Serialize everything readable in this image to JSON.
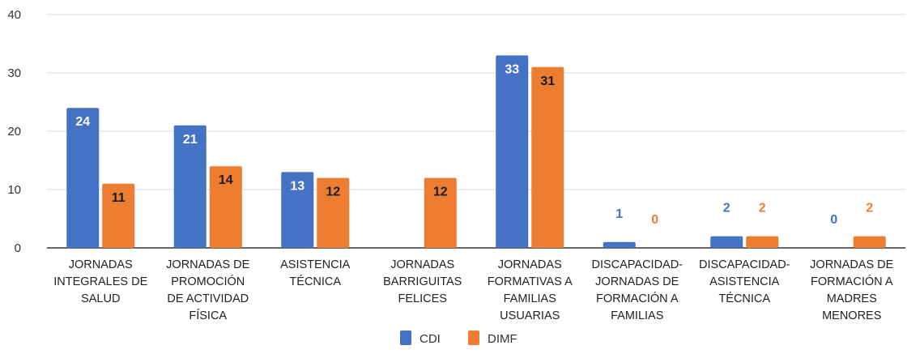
{
  "chart_data": {
    "type": "bar",
    "categories": [
      [
        "JORNADAS",
        "INTEGRALES DE",
        "SALUD"
      ],
      [
        "JORNADAS DE",
        "PROMOCIÓN",
        "DE ACTIVIDAD",
        "FÍSICA"
      ],
      [
        "ASISTENCIA",
        "TÉCNICA"
      ],
      [
        "JORNADAS",
        "BARRIGUITAS",
        "FELICES"
      ],
      [
        "JORNADAS",
        "FORMATIVAS A",
        "FAMILIAS",
        "USUARIAS"
      ],
      [
        "DISCAPACIDAD-",
        "JORNADAS DE",
        "FORMACIÓN A",
        "FAMILIAS"
      ],
      [
        "DISCAPACIDAD-",
        "ASISTENCIA",
        "TÉCNICA"
      ],
      [
        "JORNADAS DE",
        "FORMACIÓN A",
        "MADRES",
        "MENORES"
      ]
    ],
    "series": [
      {
        "name": "CDI",
        "color": "#4472C4",
        "values": [
          24,
          21,
          13,
          null,
          33,
          1,
          2,
          0
        ],
        "labels": [
          "24",
          "21",
          "13",
          "",
          "33",
          "1",
          "2",
          "0"
        ]
      },
      {
        "name": "DIMF",
        "color": "#ED7D31",
        "values": [
          11,
          14,
          12,
          12,
          31,
          0,
          2,
          2
        ],
        "labels": [
          "11",
          "14",
          "12",
          "12",
          "31",
          "0",
          "2",
          "2"
        ]
      }
    ],
    "yticks": [
      "0",
      "10",
      "20",
      "30",
      "40"
    ],
    "ylim": [
      0,
      40
    ],
    "grid": true,
    "legend_position": "bottom",
    "title": "",
    "xlabel": "",
    "ylabel": ""
  }
}
